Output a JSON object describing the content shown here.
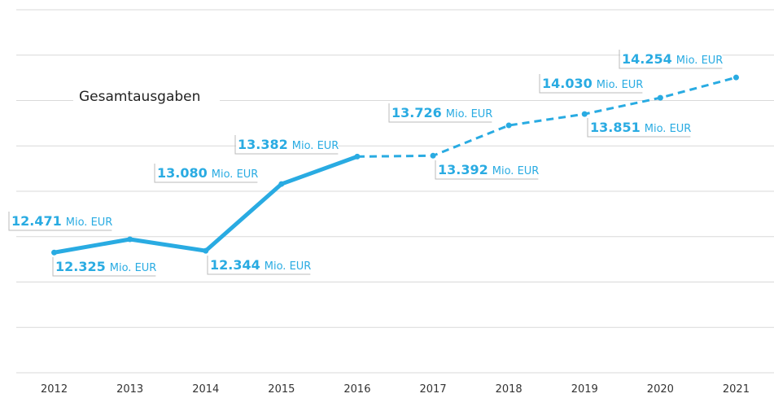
{
  "chart_data": {
    "type": "line",
    "categories": [
      "2012",
      "2013",
      "2014",
      "2015",
      "2016",
      "2017",
      "2018",
      "2019",
      "2020",
      "2021"
    ],
    "series": [
      {
        "name": "Gesamtausgaben",
        "color": "#29abe2",
        "values": [
          12325,
          12471,
          12344,
          13080,
          13382,
          13392,
          13726,
          13851,
          14030,
          14254
        ],
        "value_labels": [
          "12.325",
          "12.471",
          "12.344",
          "13.080",
          "13.382",
          "13.392",
          "13.726",
          "13.851",
          "14.030",
          "14.254"
        ]
      }
    ],
    "unit": "Mio. EUR",
    "dashed_from": "2016",
    "ylim": [
      11000,
      15000
    ],
    "yticks": [
      11000,
      11500,
      12000,
      12500,
      13000,
      13500,
      14000,
      14500,
      15000
    ],
    "grid": true
  }
}
